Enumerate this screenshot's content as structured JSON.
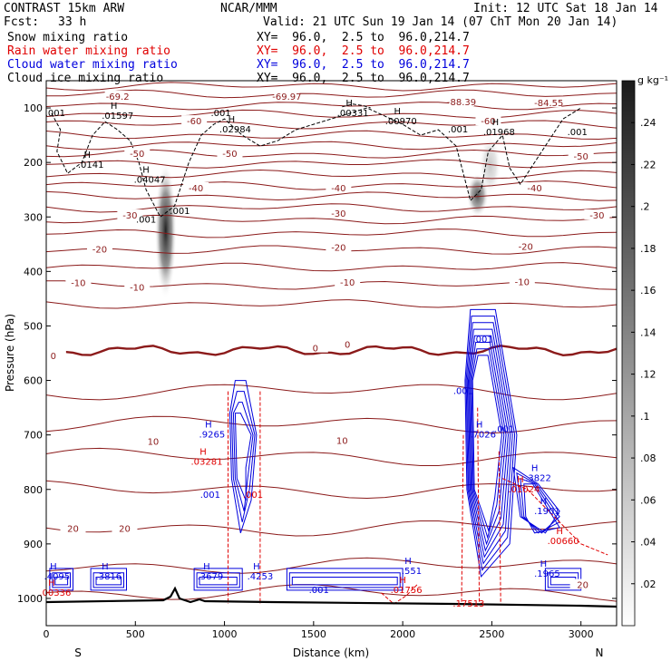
{
  "header": {
    "model": "CONTRAST 15km ARW",
    "center": "NCAR/MMM",
    "init": "Init: 12 UTC Sat 18 Jan 14",
    "fcst_label": "Fcst:",
    "fcst_value": "33 h",
    "valid": "Valid: 21 UTC Sun 19 Jan 14 (07 ChT Mon 20 Jan 14)"
  },
  "fields": [
    {
      "name": "Snow mixing ratio",
      "xy": "XY=  96.0,  2.5 to  96.0,214.7",
      "color": "#000000"
    },
    {
      "name": "Rain water mixing ratio",
      "xy": "XY=  96.0,  2.5 to  96.0,214.7",
      "color": "#e00000"
    },
    {
      "name": "Cloud water mixing ratio",
      "xy": "XY=  96.0,  2.5 to  96.0,214.7",
      "color": "#0000dd"
    },
    {
      "name": "Cloud ice mixing ratio",
      "xy": "XY=  96.0,  2.5 to  96.0,214.7",
      "color": "#000000"
    }
  ],
  "colorbar": {
    "unit": "g kg⁻¹",
    "ticks": [
      ".24",
      ".22",
      ".2",
      ".18",
      ".16",
      ".14",
      ".12",
      ".1",
      ".08",
      ".06",
      ".04",
      ".02"
    ],
    "range": [
      0,
      0.26
    ]
  },
  "chart_data": {
    "type": "cross-section contour",
    "xlabel": "Distance (km)",
    "ylabel": "Pressure (hPa)",
    "xlim": [
      0,
      3200
    ],
    "ylim": [
      1050,
      50
    ],
    "x_ticks": [
      "0",
      "500",
      "1000",
      "1500",
      "2000",
      "2500",
      "3000"
    ],
    "y_ticks": [
      "100",
      "200",
      "300",
      "400",
      "500",
      "600",
      "700",
      "800",
      "900",
      "1000"
    ],
    "x_end_labels": {
      "left": "S",
      "right": "N"
    },
    "temperature_contours": [
      {
        "label": "-69.2",
        "x": 400,
        "p": 80
      },
      {
        "label": "-69.97",
        "x": 1350,
        "p": 80
      },
      {
        "label": "-88.39",
        "x": 2330,
        "p": 90
      },
      {
        "label": "-84.55",
        "x": 2820,
        "p": 92
      },
      {
        "label": "-60",
        "x": 830,
        "p": 125
      },
      {
        "label": "-60",
        "x": 2480,
        "p": 125
      },
      {
        "label": "-50",
        "x": 510,
        "p": 185
      },
      {
        "label": "-50",
        "x": 1030,
        "p": 185
      },
      {
        "label": "-50",
        "x": 3000,
        "p": 190
      },
      {
        "label": "-40",
        "x": 840,
        "p": 248
      },
      {
        "label": "-40",
        "x": 1640,
        "p": 248
      },
      {
        "label": "-40",
        "x": 2740,
        "p": 248
      },
      {
        "label": "-30",
        "x": 470,
        "p": 298
      },
      {
        "label": "-30",
        "x": 1640,
        "p": 295
      },
      {
        "label": "-30",
        "x": 3090,
        "p": 298
      },
      {
        "label": "-20",
        "x": 300,
        "p": 360
      },
      {
        "label": "-20",
        "x": 1640,
        "p": 357
      },
      {
        "label": "-20",
        "x": 2690,
        "p": 355
      },
      {
        "label": "-10",
        "x": 180,
        "p": 422
      },
      {
        "label": "-10",
        "x": 510,
        "p": 430
      },
      {
        "label": "-10",
        "x": 1690,
        "p": 421
      },
      {
        "label": "-10",
        "x": 2670,
        "p": 420
      },
      {
        "label": "0",
        "x": 40,
        "p": 556
      },
      {
        "label": "0",
        "x": 1510,
        "p": 542
      },
      {
        "label": "0",
        "x": 1690,
        "p": 535
      },
      {
        "label": "10",
        "x": 600,
        "p": 713
      },
      {
        "label": "10",
        "x": 1660,
        "p": 711
      },
      {
        "label": "20",
        "x": 150,
        "p": 873
      },
      {
        "label": "20",
        "x": 440,
        "p": 873
      },
      {
        "label": "20",
        "x": 3010,
        "p": 976
      }
    ],
    "maxima_labels": [
      {
        "name": "H",
        "value": ".01597",
        "x": 380,
        "p": 115,
        "color": "#000000"
      },
      {
        "name": "H",
        "value": ".02984",
        "x": 1040,
        "p": 140,
        "color": "#000000"
      },
      {
        "name": "H",
        "value": ".00331",
        "x": 1700,
        "p": 110,
        "color": "#000000"
      },
      {
        "name": "H",
        "value": ".00970",
        "x": 1970,
        "p": 125,
        "color": "#000000"
      },
      {
        "name": "H",
        "value": ".01968",
        "x": 2520,
        "p": 145,
        "color": "#000000"
      },
      {
        "name": "H",
        "value": ".0141",
        "x": 230,
        "p": 205,
        "color": "#000000"
      },
      {
        "name": "H",
        "value": ".04047",
        "x": 560,
        "p": 232,
        "color": "#000000"
      },
      {
        "name": "H",
        "value": ".9265",
        "x": 910,
        "p": 700,
        "color": "#0000dd"
      },
      {
        "name": "H",
        "value": ".7026",
        "x": 2430,
        "p": 700,
        "color": "#0000dd"
      },
      {
        "name": "H",
        "value": ".3822",
        "x": 2740,
        "p": 780,
        "color": "#0000dd"
      },
      {
        "name": "H",
        "value": ".1901",
        "x": 2790,
        "p": 840,
        "color": "#0000dd"
      },
      {
        "name": "H",
        "value": ".1965",
        "x": 2790,
        "p": 955,
        "color": "#0000dd"
      },
      {
        "name": "H",
        "value": ".4095",
        "x": 40,
        "p": 960,
        "color": "#0000dd"
      },
      {
        "name": "H",
        "value": ".3816",
        "x": 330,
        "p": 960,
        "color": "#0000dd"
      },
      {
        "name": "H",
        "value": ".3679",
        "x": 900,
        "p": 960,
        "color": "#0000dd"
      },
      {
        "name": "H",
        "value": ".4253",
        "x": 1180,
        "p": 960,
        "color": "#0000dd"
      },
      {
        "name": "H",
        "value": ".551",
        "x": 2030,
        "p": 950,
        "color": "#0000dd"
      },
      {
        "name": "H",
        "value": ".03281",
        "x": 880,
        "p": 750,
        "color": "#e00000"
      },
      {
        "name": "H",
        "value": ".00336",
        "x": 30,
        "p": 990,
        "color": "#e00000"
      },
      {
        "name": "H",
        "value": ".01756",
        "x": 2000,
        "p": 985,
        "color": "#e00000"
      },
      {
        "name": "H",
        "value": ".01024",
        "x": 2660,
        "p": 800,
        "color": "#e00000"
      },
      {
        "name": "H",
        "value": ".00660",
        "x": 2880,
        "p": 895,
        "color": "#e00000"
      },
      {
        "name": "",
        "value": ".17513",
        "x": 2350,
        "p": 1010,
        "color": "#e00000"
      }
    ],
    "small_labels": [
      {
        "text": ".001",
        "x": 50,
        "p": 110,
        "color": "#000000"
      },
      {
        "text": ".001",
        "x": 980,
        "p": 110,
        "color": "#000000"
      },
      {
        "text": ".001",
        "x": 2310,
        "p": 140,
        "color": "#000000"
      },
      {
        "text": ".001",
        "x": 2980,
        "p": 145,
        "color": "#000000"
      },
      {
        "text": ".001",
        "x": 560,
        "p": 305,
        "color": "#000000"
      },
      {
        "text": ".001",
        "x": 750,
        "p": 290,
        "color": "#000000"
      },
      {
        "text": ".001",
        "x": 2450,
        "p": 525,
        "color": "#0000dd"
      },
      {
        "text": ".001",
        "x": 2340,
        "p": 620,
        "color": "#0000dd"
      },
      {
        "text": ".001",
        "x": 2570,
        "p": 690,
        "color": "#0000dd"
      },
      {
        "text": ".001",
        "x": 920,
        "p": 810,
        "color": "#0000dd"
      },
      {
        "text": ".001",
        "x": 1160,
        "p": 810,
        "color": "#e00000"
      },
      {
        "text": ".001",
        "x": 1530,
        "p": 985,
        "color": "#0000dd"
      }
    ],
    "snow_and_ice_shading": [
      {
        "x": 670,
        "p_top": 200,
        "p_bottom": 450,
        "max": 0.2
      },
      {
        "x": 2420,
        "p_top": 220,
        "p_bottom": 300,
        "max": 0.16
      },
      {
        "x": 2490,
        "p_top": 150,
        "p_bottom": 260,
        "max": 0.05
      }
    ]
  }
}
